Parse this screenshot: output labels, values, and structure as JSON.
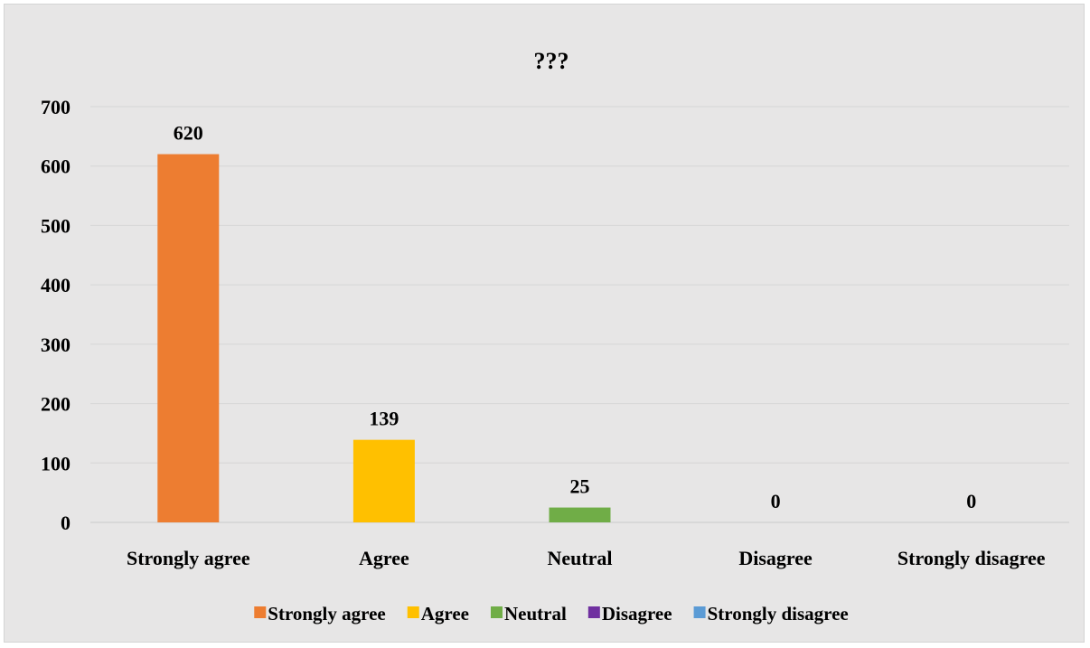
{
  "chart_data": {
    "type": "bar",
    "title": "???",
    "categories": [
      "Strongly agree",
      "Agree",
      "Neutral",
      "Disagree",
      "Strongly disagree"
    ],
    "values": [
      620,
      139,
      25,
      0,
      0
    ],
    "colors": [
      "#ed7d31",
      "#ffc000",
      "#70ad47",
      "#7030a0",
      "#5b9bd5"
    ],
    "ylim": [
      0,
      700
    ],
    "yticks": [
      0,
      100,
      200,
      300,
      400,
      500,
      600,
      700
    ],
    "grid": true,
    "data_labels": true,
    "legend": {
      "placement": "bottom",
      "entries": [
        "Strongly agree",
        "Agree",
        "Neutral",
        "Disagree",
        "Strongly disagree"
      ]
    }
  }
}
